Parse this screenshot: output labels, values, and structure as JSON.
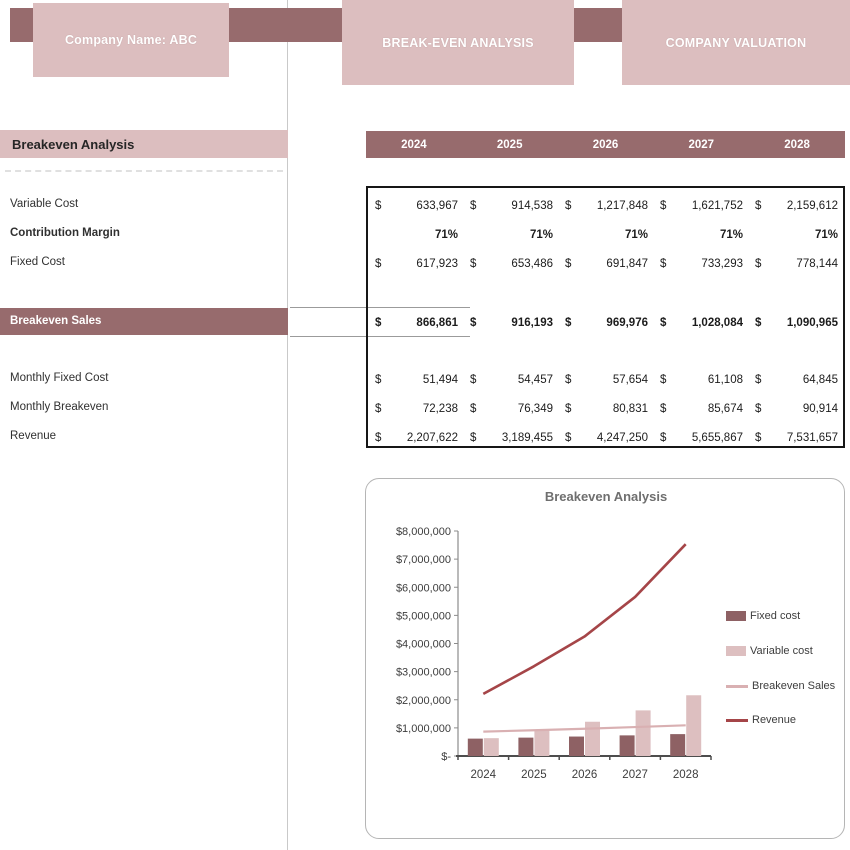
{
  "colors": {
    "dark_mauve": "#976B6D",
    "light_pink": "#DCBEBF",
    "bar_fixed": "#8E6164",
    "bar_variable": "#DDBFC0",
    "line_breakeven": "#D9B0B2",
    "line_revenue": "#A54548",
    "table_border": "#161616",
    "axis_text": "#3d3d3d",
    "chart_title_color": "#6f6f6f"
  },
  "header": {
    "tabs": [
      {
        "label": "Company Name: ABC"
      },
      {
        "label": "BREAK-EVEN ANALYSIS"
      },
      {
        "label": "COMPANY VALUATION"
      }
    ]
  },
  "left_panel": {
    "section_title": "Breakeven Analysis",
    "breakeven_sales_label": "Breakeven Sales",
    "rows": [
      {
        "label": "Variable Cost",
        "bold": false
      },
      {
        "label": "Contribution Margin",
        "bold": true
      },
      {
        "label": "Fixed Cost",
        "bold": false
      },
      {
        "label": "Monthly Fixed Cost",
        "bold": false
      },
      {
        "label": "Monthly Breakeven",
        "bold": false
      },
      {
        "label": "Revenue",
        "bold": false
      }
    ]
  },
  "table": {
    "years": [
      "2024",
      "2025",
      "2026",
      "2027",
      "2028"
    ],
    "rows": [
      {
        "label": "Variable Cost",
        "currency": true,
        "bold": false,
        "values": [
          "633,967",
          "914,538",
          "1,217,848",
          "1,621,752",
          "2,159,612"
        ]
      },
      {
        "label": "Contribution Margin",
        "currency": false,
        "bold": true,
        "values": [
          "71%",
          "71%",
          "71%",
          "71%",
          "71%"
        ]
      },
      {
        "label": "Fixed Cost",
        "currency": true,
        "bold": false,
        "values": [
          "617,923",
          "653,486",
          "691,847",
          "733,293",
          "778,144"
        ]
      },
      {
        "label": "Breakeven Sales",
        "currency": true,
        "bold": true,
        "values": [
          "866,861",
          "916,193",
          "969,976",
          "1,028,084",
          "1,090,965"
        ]
      },
      {
        "label": "Monthly Fixed Cost",
        "currency": true,
        "bold": false,
        "values": [
          "51,494",
          "54,457",
          "57,654",
          "61,108",
          "64,845"
        ]
      },
      {
        "label": "Monthly Breakeven",
        "currency": true,
        "bold": false,
        "values": [
          "72,238",
          "76,349",
          "80,831",
          "85,674",
          "90,914"
        ]
      },
      {
        "label": "Revenue",
        "currency": true,
        "bold": false,
        "values": [
          "2,207,622",
          "3,189,455",
          "4,247,250",
          "5,655,867",
          "7,531,657"
        ]
      }
    ],
    "currency_symbol": "$"
  },
  "chart_data": {
    "type": "bar",
    "subtype": "combo-bar-line",
    "title": "Breakeven Analysis",
    "categories": [
      "2024",
      "2025",
      "2026",
      "2027",
      "2028"
    ],
    "series": [
      {
        "name": "Fixed cost",
        "type": "bar",
        "color": "#8E6164",
        "values": [
          617923,
          653486,
          691847,
          733293,
          778144
        ]
      },
      {
        "name": "Variable cost",
        "type": "bar",
        "color": "#DDBFC0",
        "values": [
          633967,
          914538,
          1217848,
          1621752,
          2159612
        ]
      },
      {
        "name": "Breakeven Sales",
        "type": "line",
        "color": "#D9B0B2",
        "values": [
          866861,
          916193,
          969976,
          1028084,
          1090965
        ]
      },
      {
        "name": "Revenue",
        "type": "line",
        "color": "#A54548",
        "values": [
          2207622,
          3189455,
          4247250,
          5655867,
          7531657
        ]
      }
    ],
    "ylim": [
      0,
      8000000
    ],
    "ytick_step": 1000000,
    "ytick_labels": [
      "$-",
      "$1,000,000",
      "$2,000,000",
      "$3,000,000",
      "$4,000,000",
      "$5,000,000",
      "$6,000,000",
      "$7,000,000",
      "$8,000,000"
    ],
    "xlabel": "",
    "ylabel": "",
    "grid": false,
    "legend_position": "right"
  }
}
